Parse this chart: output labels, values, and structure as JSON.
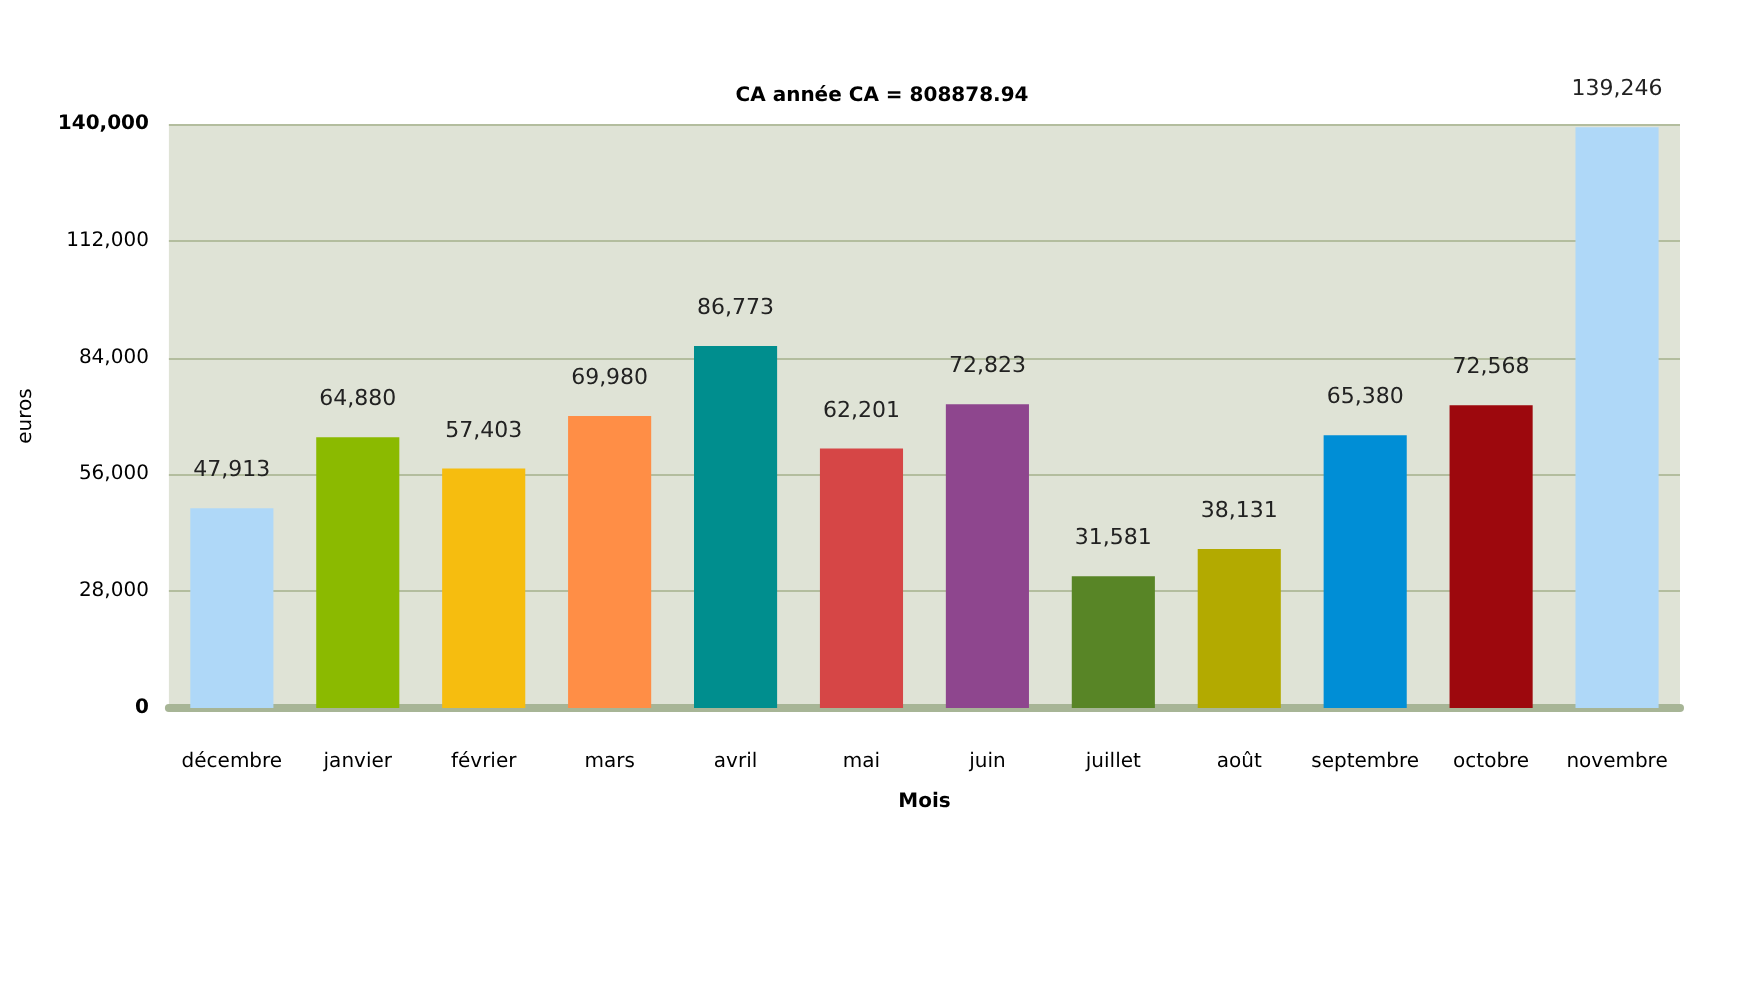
{
  "chart_data": {
    "type": "bar",
    "title": "CA année CA = 808878.94",
    "xlabel": "Mois",
    "ylabel": "euros",
    "categories": [
      "décembre",
      "janvier",
      "février",
      "mars",
      "avril",
      "mai",
      "juin",
      "juillet",
      "août",
      "septembre",
      "octobre",
      "novembre"
    ],
    "values": [
      47913,
      64880,
      57403,
      69980,
      86773,
      62201,
      72823,
      31581,
      38131,
      65380,
      72568,
      139246
    ],
    "value_labels": [
      "47,913",
      "64,880",
      "57,403",
      "69,980",
      "86,773",
      "62,201",
      "72,823",
      "31,581",
      "38,131",
      "65,380",
      "72,568",
      "139,246"
    ],
    "colors": [
      "#afd8f8",
      "#8bba00",
      "#f6bd0f",
      "#ff8e46",
      "#008e8e",
      "#d64646",
      "#8e468e",
      "#588526",
      "#b3aa00",
      "#008ed6",
      "#9d080d",
      "#afd8f8"
    ],
    "ylim": [
      0,
      140000
    ],
    "yticks": [
      {
        "value": 0,
        "label": "0"
      },
      {
        "value": 28000,
        "label": "28,000"
      },
      {
        "value": 56000,
        "label": "56,000"
      },
      {
        "value": 84000,
        "label": "84,000"
      },
      {
        "value": 112000,
        "label": "112,000"
      },
      {
        "value": 140000,
        "label": "140,000"
      }
    ],
    "grid": "y"
  }
}
